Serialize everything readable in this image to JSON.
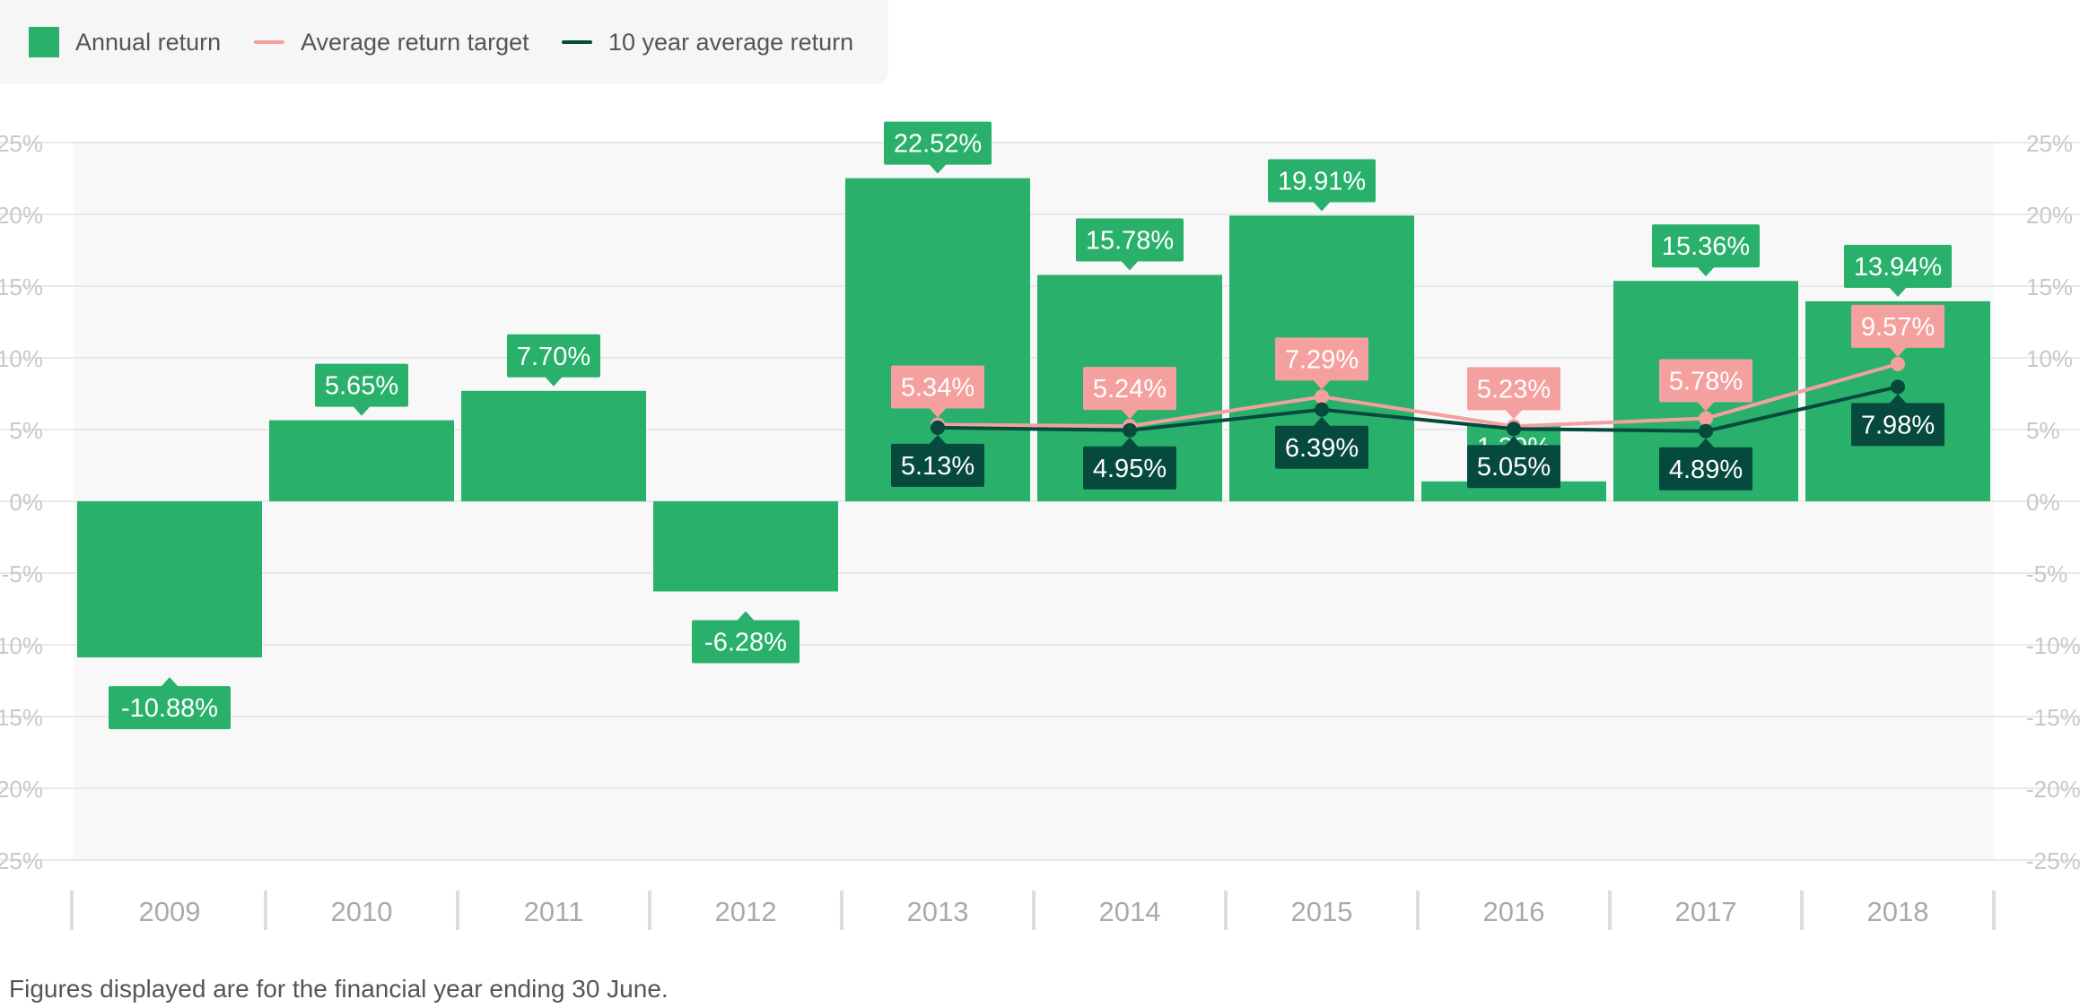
{
  "legend": {
    "annual": "Annual return",
    "target": "Average return target",
    "tenyear": "10 year average return"
  },
  "footnote": "Figures displayed are for the financial year ending 30 June.",
  "colors": {
    "annual": "#29b16c",
    "target": "#f4a09e",
    "tenyear": "#064a3e",
    "plot_bg": "#f8f8f8",
    "grid": "#e2e2e2",
    "axis_text": "#c8c8c8",
    "year_text": "#aaaaaa"
  },
  "chart_data": {
    "type": "bar",
    "categories": [
      "2009",
      "2010",
      "2011",
      "2012",
      "2013",
      "2014",
      "2015",
      "2016",
      "2017",
      "2018"
    ],
    "ylim": [
      -25,
      25
    ],
    "yticks": [
      25,
      20,
      15,
      10,
      5,
      0,
      -5,
      -10,
      -15,
      -20,
      -25
    ],
    "ytick_labels": [
      "25%",
      "20%",
      "15%",
      "10%",
      "5%",
      "0%",
      "-5%",
      "-10%",
      "-15%",
      "-20%",
      "-25%"
    ],
    "series": [
      {
        "name": "Annual return",
        "type": "bar",
        "values": [
          -10.88,
          5.65,
          7.7,
          -6.28,
          22.52,
          15.78,
          19.91,
          1.39,
          15.36,
          13.94
        ],
        "labels": [
          "-10.88%",
          "5.65%",
          "7.70%",
          "-6.28%",
          "22.52%",
          "15.78%",
          "19.91%",
          "1.39%",
          "15.36%",
          "13.94%"
        ]
      },
      {
        "name": "Average return target",
        "type": "line",
        "values": [
          null,
          null,
          null,
          null,
          5.34,
          5.24,
          7.29,
          5.23,
          5.78,
          9.57
        ],
        "labels": [
          "",
          "",
          "",
          "",
          "5.34%",
          "5.24%",
          "7.29%",
          "5.23%",
          "5.78%",
          "9.57%"
        ]
      },
      {
        "name": "10 year average return",
        "type": "line",
        "values": [
          null,
          null,
          null,
          null,
          5.13,
          4.95,
          6.39,
          5.05,
          4.89,
          7.98
        ],
        "labels": [
          "",
          "",
          "",
          "",
          "5.13%",
          "4.95%",
          "6.39%",
          "5.05%",
          "4.89%",
          "7.98%"
        ]
      }
    ],
    "grid": true,
    "legend_position": "top-left"
  }
}
